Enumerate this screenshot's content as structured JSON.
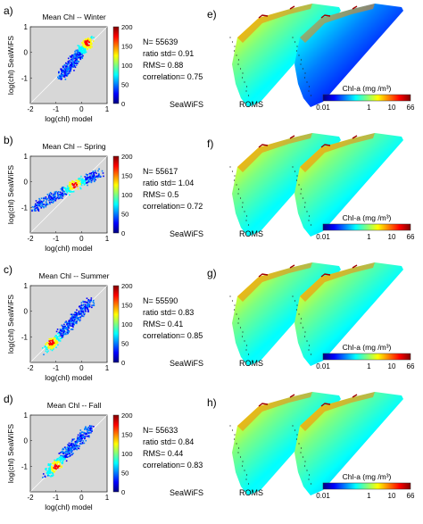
{
  "colors": {
    "scatter_bg": "#d7d7d7",
    "colormap": [
      "#00007f",
      "#0000ff",
      "#007fff",
      "#00ffff",
      "#7fff7f",
      "#ffff00",
      "#ff7f00",
      "#ff0000",
      "#7f0000"
    ]
  },
  "panels": [
    {
      "left_label": "a)",
      "right_label": "e)",
      "scatter_title": "Mean Chl -- Winter",
      "stats": [
        "N= 55639",
        "ratio std= 0.91",
        "RMS= 0.88",
        "correlation= 0.75"
      ],
      "map_left_label": "SeaWiFS",
      "map_right_label": "ROMS",
      "colorbar_title": "Chl-a (mg /m³)",
      "colorbar_ticks": [
        "0.01",
        "1",
        "10",
        "66"
      ]
    },
    {
      "left_label": "b)",
      "right_label": "f)",
      "scatter_title": "Mean Chl -- Spring",
      "stats": [
        "N= 55617",
        "ratio std= 1.04",
        "RMS= 0.5",
        "correlation= 0.72"
      ],
      "map_left_label": "SeaWiFS",
      "map_right_label": "ROMS",
      "colorbar_title": "Chl-a (mg /m³)",
      "colorbar_ticks": [
        "0.01",
        "1",
        "10",
        "66"
      ]
    },
    {
      "left_label": "c)",
      "right_label": "g)",
      "scatter_title": "Mean Chl -- Summer",
      "stats": [
        "N= 55590",
        "ratio std= 0.83",
        "RMS= 0.41",
        "correlation= 0.85"
      ],
      "map_left_label": "SeaWiFS",
      "map_right_label": "ROMS",
      "colorbar_title": "Chl-a (mg /m³)",
      "colorbar_ticks": [
        "0.01",
        "1",
        "10",
        "66"
      ]
    },
    {
      "left_label": "d)",
      "right_label": "h)",
      "scatter_title": "Mean Chl -- Fall",
      "stats": [
        "N= 55633",
        "ratio std= 0.84",
        "RMS= 0.44",
        "correlation= 0.83"
      ],
      "map_left_label": "SeaWiFS",
      "map_right_label": "ROMS",
      "colorbar_title": "Chl-a (mg /m³)",
      "colorbar_ticks": [
        "0.01",
        "1",
        "10",
        "66"
      ]
    }
  ],
  "chart_data": [
    {
      "type": "heatmap",
      "title": "Mean Chl -- Winter",
      "xlabel": "log(chl) model",
      "ylabel": "log(chl) SeaWiFS",
      "xlim": [
        -2,
        1
      ],
      "ylim": [
        -2,
        1
      ],
      "xticks": [
        "-2",
        "-1",
        "0",
        "1"
      ],
      "yticks": [
        "-1",
        "0",
        "1"
      ],
      "colorbar": {
        "range": [
          0,
          200
        ],
        "ticks": [
          "0",
          "50",
          "100",
          "150",
          "200"
        ]
      },
      "cloud": {
        "x_center": [
          -0.8,
          0.3
        ],
        "y_center": [
          -0.9,
          0.5
        ],
        "peak": [
          0.2,
          0.4
        ]
      }
    },
    {
      "type": "heatmap",
      "title": "Mean Chl -- Spring",
      "xlabel": "log(chl) model",
      "ylabel": "log(chl) SeaWiFS",
      "xlim": [
        -2,
        1
      ],
      "ylim": [
        -2,
        1
      ],
      "xticks": [
        "-2",
        "-1",
        "0",
        "1"
      ],
      "yticks": [
        "-1",
        "0",
        "1"
      ],
      "colorbar": {
        "range": [
          0,
          200
        ],
        "ticks": [
          "0",
          "50",
          "100",
          "150",
          "200"
        ]
      },
      "cloud": {
        "x_center": [
          -1.9,
          0.7
        ],
        "y_center": [
          -1.0,
          0.4
        ],
        "peak": [
          -0.3,
          -0.1
        ]
      }
    },
    {
      "type": "heatmap",
      "title": "Mean Chl -- Summer",
      "xlabel": "log(chl) model",
      "ylabel": "log(chl) SeaWiFS",
      "xlim": [
        -2,
        1
      ],
      "ylim": [
        -2,
        1
      ],
      "xticks": [
        "-2",
        "-1",
        "0",
        "1"
      ],
      "yticks": [
        "-1",
        "0",
        "1"
      ],
      "colorbar": {
        "range": [
          0,
          200
        ],
        "ticks": [
          "0",
          "50",
          "100",
          "150",
          "200"
        ]
      },
      "cloud": {
        "x_center": [
          -1.4,
          0.3
        ],
        "y_center": [
          -1.5,
          0.4
        ],
        "peak": [
          -1.2,
          -1.2
        ]
      }
    },
    {
      "type": "heatmap",
      "title": "Mean Chl -- Fall",
      "xlabel": "log(chl) model",
      "ylabel": "log(chl) SeaWiFS",
      "xlim": [
        -2,
        1
      ],
      "ylim": [
        -2,
        1
      ],
      "xticks": [
        "-2",
        "-1",
        "0",
        "1"
      ],
      "yticks": [
        "-1",
        "0",
        "1"
      ],
      "colorbar": {
        "range": [
          0,
          200
        ],
        "ticks": [
          "0",
          "50",
          "100",
          "150",
          "200"
        ]
      },
      "cloud": {
        "x_center": [
          -1.4,
          0.3
        ],
        "y_center": [
          -1.3,
          0.5
        ],
        "peak": [
          -1.0,
          -1.0
        ]
      }
    }
  ]
}
